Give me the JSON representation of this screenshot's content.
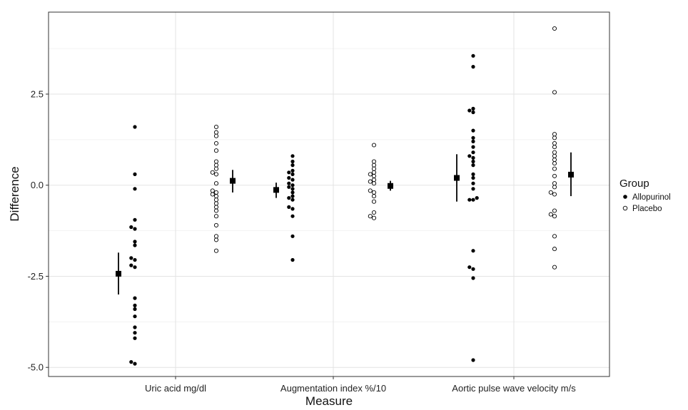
{
  "chart_data": {
    "type": "scatter",
    "xlabel": "Measure",
    "ylabel": "Difference",
    "categories": [
      "Uric acid mg/dl",
      "Augmentation index %/10",
      "Aortic pulse wave velocity m/s"
    ],
    "ylim": [
      -5.25,
      4.75
    ],
    "yticks": [
      -5.0,
      -2.5,
      0.0,
      2.5
    ],
    "ytick_labels": [
      "-5.0",
      "-2.5",
      "0.0",
      "2.5"
    ],
    "grid": true,
    "legend": {
      "title": "Group",
      "position": "right",
      "entries": [
        "Allopurinol",
        "Placebo"
      ]
    },
    "series": [
      {
        "name": "Allopurinol",
        "marker": "filled-circle",
        "points": [
          [
            -4.9,
            -4.85,
            -4.2,
            -4.05,
            -3.9,
            -3.6,
            -3.4,
            -3.3,
            -3.1,
            -2.25,
            -2.2,
            -2.05,
            -2.0,
            -1.65,
            -1.55,
            -1.2,
            -1.15,
            -0.95,
            -0.1,
            0.3,
            1.6
          ],
          [
            -2.05,
            -1.4,
            -0.85,
            -0.65,
            -0.6,
            -0.4,
            -0.35,
            -0.3,
            -0.2,
            -0.1,
            -0.05,
            0.0,
            0.05,
            0.15,
            0.2,
            0.3,
            0.35,
            0.4,
            0.55,
            0.65,
            0.8
          ],
          [
            -4.8,
            -2.55,
            -2.3,
            -2.25,
            -1.8,
            -0.4,
            -0.4,
            -0.35,
            -0.1,
            0.05,
            0.2,
            0.3,
            0.55,
            0.65,
            0.75,
            0.8,
            0.9,
            1.05,
            1.2,
            1.3,
            1.5,
            2.0,
            2.05,
            2.1,
            3.25,
            3.55
          ]
        ],
        "summary": [
          {
            "mean": -2.43,
            "ci": [
              -3.0,
              -1.85
            ]
          },
          {
            "mean": -0.13,
            "ci": [
              -0.35,
              0.07
            ]
          },
          {
            "mean": 0.2,
            "ci": [
              -0.45,
              0.85
            ]
          }
        ]
      },
      {
        "name": "Placebo",
        "marker": "open-circle",
        "points": [
          [
            -1.8,
            -1.5,
            -1.4,
            -1.1,
            -0.85,
            -0.7,
            -0.6,
            -0.5,
            -0.4,
            -0.3,
            -0.25,
            -0.2,
            -0.15,
            0.05,
            0.3,
            0.35,
            0.45,
            0.55,
            0.65,
            0.95,
            1.15,
            1.35,
            1.45,
            1.6
          ],
          [
            -0.9,
            -0.85,
            -0.75,
            -0.45,
            -0.3,
            -0.2,
            -0.15,
            0.05,
            0.1,
            0.15,
            0.25,
            0.3,
            0.35,
            0.45,
            0.55,
            0.65,
            1.1
          ],
          [
            -2.25,
            -1.75,
            -1.4,
            -0.85,
            -0.8,
            -0.7,
            -0.25,
            -0.2,
            -0.05,
            0.05,
            0.25,
            0.45,
            0.6,
            0.7,
            0.8,
            0.9,
            1.05,
            1.15,
            1.3,
            1.4,
            2.55,
            4.3
          ]
        ],
        "summary": [
          {
            "mean": 0.12,
            "ci": [
              -0.2,
              0.42
            ]
          },
          {
            "mean": -0.02,
            "ci": [
              -0.15,
              0.12
            ]
          },
          {
            "mean": 0.29,
            "ci": [
              -0.3,
              0.9
            ]
          }
        ]
      }
    ]
  }
}
